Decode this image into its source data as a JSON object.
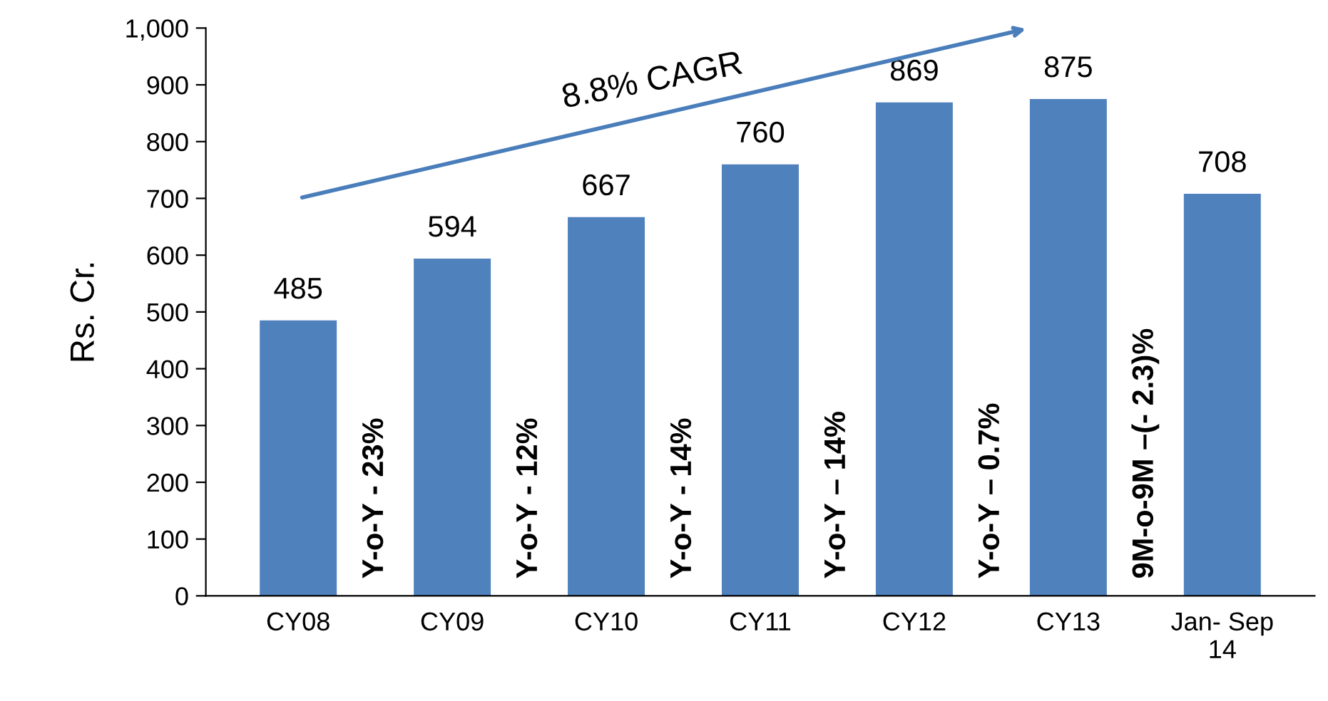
{
  "chart_data": {
    "type": "bar",
    "ylabel": "Rs. Cr.",
    "categories": [
      "CY08",
      "CY09",
      "CY10",
      "CY11",
      "CY12",
      "CY13",
      "Jan- Sep\n14"
    ],
    "values": [
      485,
      594,
      667,
      760,
      869,
      875,
      708
    ],
    "color": "#4f81bd",
    "ylim": [
      0,
      1000
    ],
    "yticks": [
      0,
      100,
      200,
      300,
      400,
      500,
      600,
      700,
      800,
      900,
      {
        "value": 1000,
        "label": "1,000"
      }
    ],
    "data_labels": true,
    "grid": false,
    "legend": false,
    "annotations": [
      "8.8% CAGR",
      "Y-o-Y - 23%",
      "Y-o-Y - 12%",
      "Y-o-Y - 14%",
      "Y-o-Y – 14%",
      "Y-o-Y – 0.7%",
      "9M-o-9M –(- 2.3)%"
    ]
  }
}
